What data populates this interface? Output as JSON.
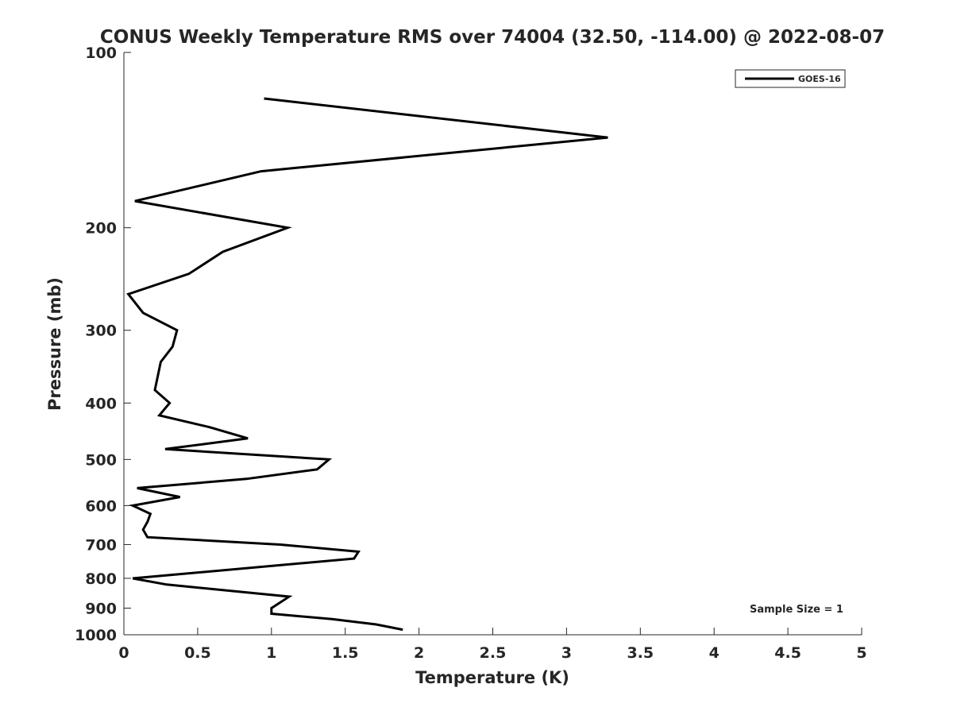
{
  "chart_data": {
    "type": "line",
    "title": "CONUS Weekly Temperature RMS over 74004 (32.50, -114.00) @ 2022-08-07",
    "xlabel": "Temperature (K)",
    "ylabel": "Pressure (mb)",
    "xlim": [
      0,
      5
    ],
    "ylim": [
      100,
      1000
    ],
    "yscale": "log",
    "yreversed": true,
    "grid": false,
    "xticks": [
      "0",
      "0.5",
      "1",
      "1.5",
      "2",
      "2.5",
      "3",
      "3.5",
      "4",
      "4.5",
      "5"
    ],
    "yticks": [
      "100",
      "200",
      "300",
      "400",
      "500",
      "600",
      "700",
      "800",
      "900",
      "1000"
    ],
    "legend": {
      "placement": "top-right",
      "entries": [
        "GOES-16"
      ]
    },
    "annotation": "Sample Size = 1",
    "series": [
      {
        "name": "GOES-16",
        "color": "#000000",
        "x": [
          0.95,
          3.28,
          0.93,
          0.075,
          1.11,
          0.67,
          0.44,
          0.03,
          0.13,
          0.36,
          0.33,
          0.25,
          0.21,
          0.31,
          0.24,
          0.58,
          0.84,
          0.28,
          1.39,
          1.31,
          0.83,
          0.09,
          0.38,
          0.06,
          0.18,
          0.16,
          0.13,
          0.16,
          1.06,
          1.59,
          1.56,
          0.06,
          0.29,
          1.12,
          1.0,
          1.0,
          1.41,
          1.71,
          1.89
        ],
        "y": [
          120,
          140,
          160,
          180,
          200,
          220,
          240,
          260,
          280,
          300,
          320,
          340,
          380,
          400,
          420,
          440,
          460,
          480,
          500,
          520,
          540,
          560,
          580,
          600,
          620,
          640,
          660,
          680,
          700,
          720,
          740,
          800,
          820,
          860,
          900,
          920,
          940,
          960,
          980
        ]
      }
    ]
  }
}
